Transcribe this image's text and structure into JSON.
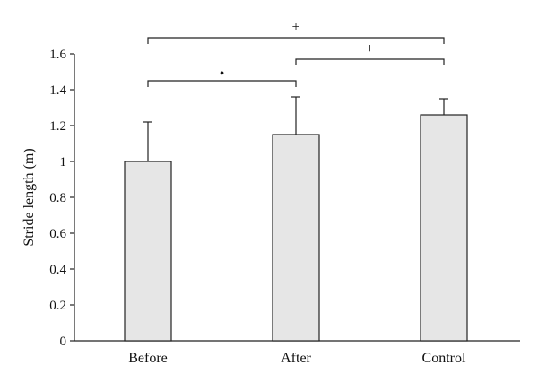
{
  "chart_data": {
    "type": "bar",
    "categories": [
      "Before",
      "After",
      "Control"
    ],
    "values": [
      1.0,
      1.15,
      1.26
    ],
    "error_upper": [
      0.22,
      0.21,
      0.09
    ],
    "title": "",
    "xlabel": "",
    "ylabel": "Stride length (m)",
    "ylim": [
      0,
      1.6
    ],
    "yticks": [
      0,
      0.2,
      0.4,
      0.6,
      0.8,
      1.0,
      1.2,
      1.4,
      1.6
    ],
    "ytick_labels": [
      "0",
      "0.2",
      "0.4",
      "0.6",
      "0.8",
      "1",
      "1.2",
      "1.4",
      "1.6"
    ],
    "grid": false,
    "bar_color": "#e6e6e6",
    "edge_color": "#222222",
    "significance": [
      {
        "from": "Before",
        "to": "After",
        "y": 1.45,
        "symbol": "•"
      },
      {
        "from": "After",
        "to": "Control",
        "y": 1.57,
        "symbol": "+"
      },
      {
        "from": "Before",
        "to": "Control",
        "y": 1.69,
        "symbol": "+"
      }
    ]
  }
}
